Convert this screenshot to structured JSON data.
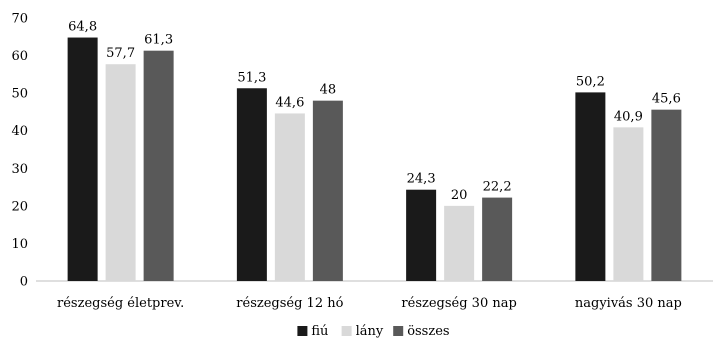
{
  "chart_data": {
    "type": "bar",
    "title": "",
    "xlabel": "",
    "ylabel": "",
    "ylim": [
      0,
      70
    ],
    "yticks": [
      0,
      10,
      20,
      30,
      40,
      50,
      60,
      70
    ],
    "grid": false,
    "legend_position": "bottom",
    "categories": [
      "részegség életprev.",
      "részegség 12 hó",
      "részegség 30 nap",
      "nagyivás 30 nap"
    ],
    "series": [
      {
        "name": "fiú",
        "color": "#1a1a1a",
        "values": [
          64.8,
          51.3,
          24.3,
          50.2
        ],
        "labels": [
          "64,8",
          "51,3",
          "24,3",
          "50,2"
        ]
      },
      {
        "name": "lány",
        "color": "#d9d9d9",
        "values": [
          57.7,
          44.6,
          20,
          40.9
        ],
        "labels": [
          "57,7",
          "44,6",
          "20",
          "40,9"
        ]
      },
      {
        "name": "összes",
        "color": "#595959",
        "values": [
          61.3,
          48,
          22.2,
          45.6
        ],
        "labels": [
          "61,3",
          "48",
          "22,2",
          "45,6"
        ]
      }
    ]
  }
}
